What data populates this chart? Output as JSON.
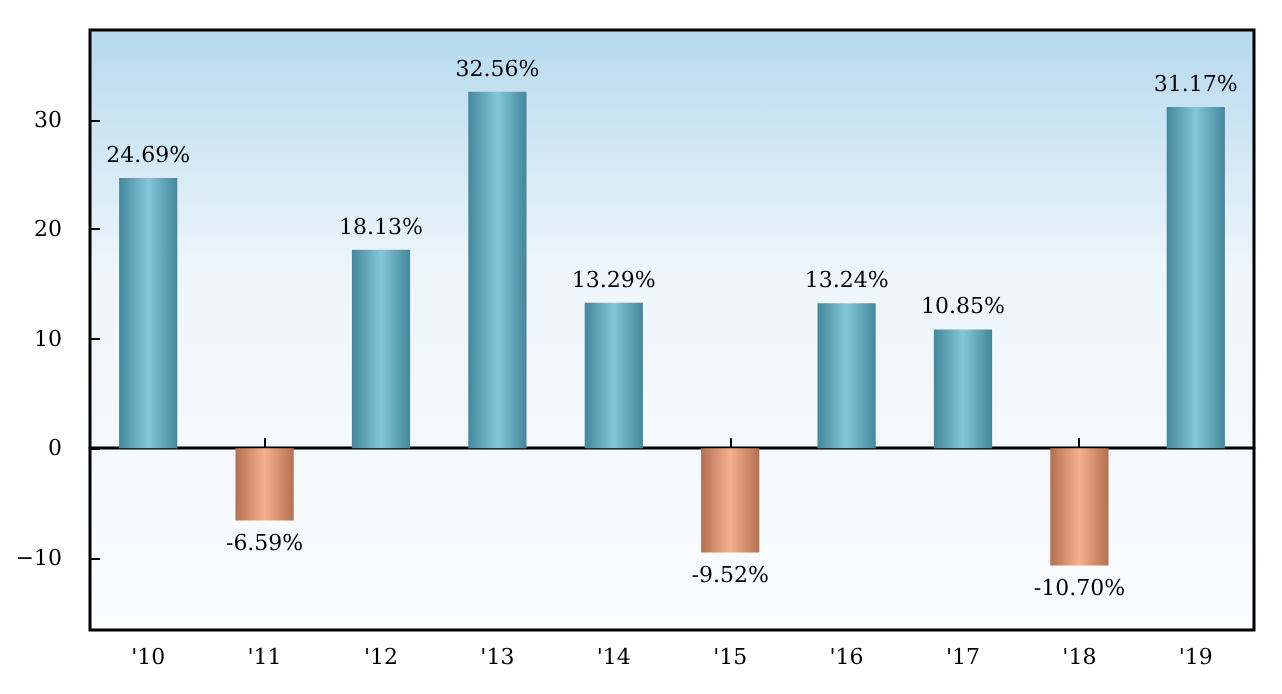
{
  "chart_data": {
    "type": "bar",
    "categories": [
      "'10",
      "'11",
      "'12",
      "'13",
      "'14",
      "'15",
      "'16",
      "'17",
      "'18",
      "'19"
    ],
    "values": [
      24.69,
      -6.59,
      18.13,
      32.56,
      13.29,
      -9.52,
      13.24,
      10.85,
      -10.7,
      31.17
    ],
    "colors": [
      "#5ab4cf",
      "#f0956a",
      "#5ab4cf",
      "#5ab4cf",
      "#5ab4cf",
      "#f0956a",
      "#5ab4cf",
      "#5ab4cf",
      "#f0956a",
      "#5ab4cf"
    ],
    "value_labels": [
      "24.69%",
      "-6.59%",
      "18.13%",
      "32.56%",
      "13.29%",
      "-9.52%",
      "13.24%",
      "10.85%",
      "-10.70%",
      "31.17%"
    ],
    "ylim": [
      -16.6,
      38.2
    ],
    "yticks": [
      {
        "value": -10,
        "label": "−10"
      },
      0,
      10,
      20,
      30
    ]
  }
}
